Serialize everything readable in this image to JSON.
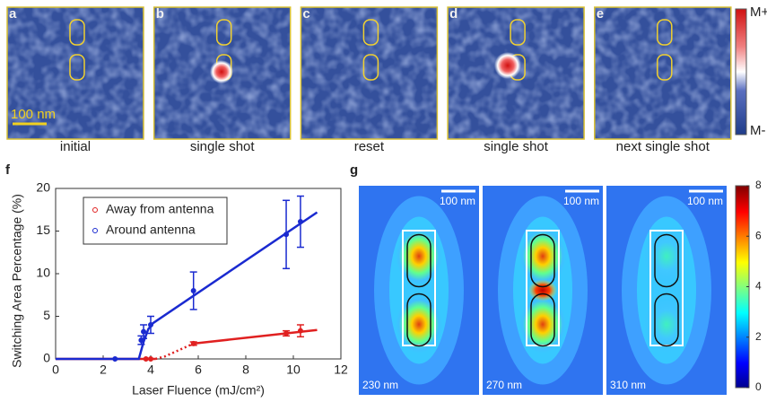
{
  "panels_top": [
    {
      "letter": "a",
      "caption": "initial"
    },
    {
      "letter": "b",
      "caption": "single shot"
    },
    {
      "letter": "c",
      "caption": "reset"
    },
    {
      "letter": "d",
      "caption": "single shot"
    },
    {
      "letter": "e",
      "caption": "next single shot"
    }
  ],
  "scale_bar_top": "100 nm",
  "colorbar_top": {
    "max_label": "M+",
    "min_label": "M-"
  },
  "chart_data": {
    "type": "scatter",
    "panel_letter": "f",
    "xlabel": "Laser Fluence (mJ/cm²)",
    "ylabel": "Switching Area Percentage (%)",
    "xlim": [
      0,
      12
    ],
    "xticks": [
      0,
      2,
      4,
      6,
      8,
      10,
      12
    ],
    "ylim": [
      0,
      20
    ],
    "yticks": [
      0,
      5,
      10,
      15,
      20
    ],
    "legend": "upper left",
    "series": [
      {
        "name": "Away from antenna",
        "color": "#e02020",
        "x": [
          3.8,
          4.0,
          5.8,
          9.7,
          10.3
        ],
        "values": [
          0,
          0,
          1.8,
          3.0,
          3.3
        ],
        "errors": [
          0,
          0,
          0.2,
          0.3,
          0.7
        ]
      },
      {
        "name": "Around antenna",
        "color": "#1a2ad0",
        "x": [
          2.5,
          3.6,
          3.7,
          4.0,
          5.8,
          9.7,
          10.3
        ],
        "values": [
          0,
          2.2,
          3.2,
          4.0,
          8.0,
          14.6,
          16.1
        ],
        "errors": [
          0,
          0.5,
          0.8,
          1.0,
          2.2,
          4.0,
          3.0
        ]
      }
    ],
    "fits": [
      {
        "color": "#e02020",
        "x": [
          0,
          4.2,
          4.6,
          5.0,
          5.4,
          5.8,
          11
        ],
        "values": [
          0,
          0,
          0.3,
          0.8,
          1.3,
          1.8,
          3.4
        ],
        "dotted_until": 5.8
      },
      {
        "color": "#1a2ad0",
        "x": [
          0,
          3.5,
          3.7,
          3.9,
          4.1,
          11
        ],
        "values": [
          0,
          0,
          2.0,
          3.5,
          4.2,
          17.2
        ]
      }
    ]
  },
  "panel_g": {
    "letter": "g",
    "maps": [
      {
        "label": "230 nm",
        "scale": "100 nm"
      },
      {
        "label": "270 nm",
        "scale": "100 nm"
      },
      {
        "label": "310 nm",
        "scale": "100 nm"
      }
    ],
    "colorbar_lim": [
      0,
      8
    ],
    "colorbar_ticks": [
      0,
      2,
      4,
      6,
      8
    ]
  }
}
